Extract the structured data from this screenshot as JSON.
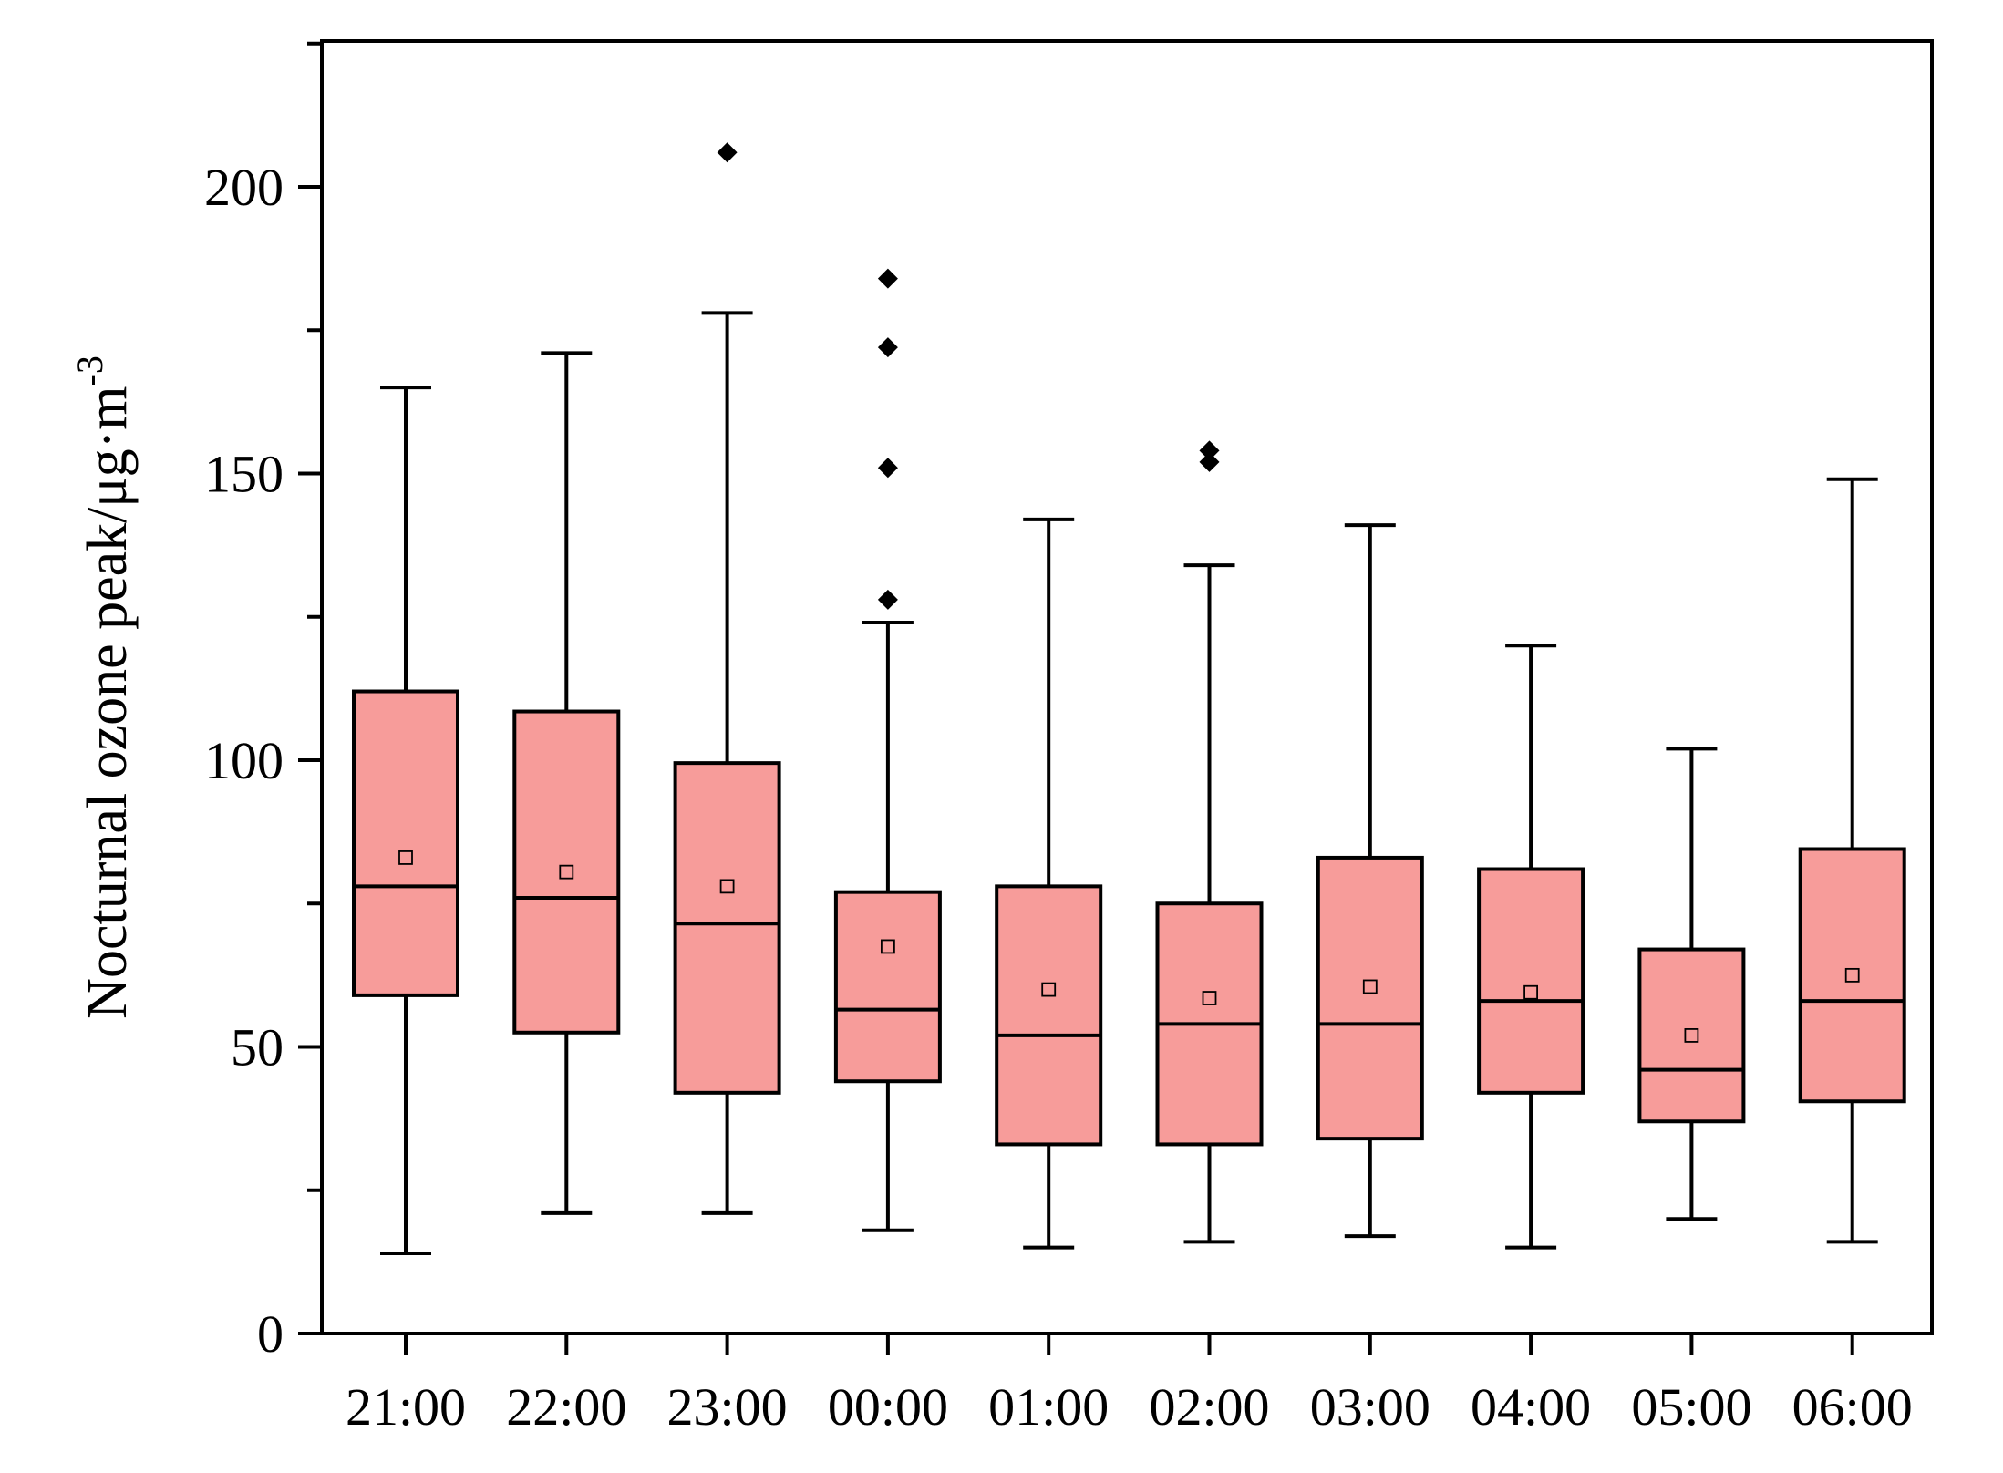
{
  "chart_data": {
    "type": "box",
    "title": "",
    "xlabel": "",
    "ylabel": "Nocturnal ozone peak/μg·m",
    "ylabel_superscript": "-3",
    "ylim": [
      0,
      225
    ],
    "yticks": [
      0,
      50,
      100,
      150,
      200
    ],
    "y_minor_ticks": [
      25,
      75,
      125,
      175,
      225
    ],
    "legend": "none",
    "grid": false,
    "box_fill_color": "#F79C9A",
    "box_edge_color": "#000000",
    "categories": [
      "21:00",
      "22:00",
      "23:00",
      "00:00",
      "01:00",
      "02:00",
      "03:00",
      "04:00",
      "05:00",
      "06:00"
    ],
    "boxes": [
      {
        "label": "21:00",
        "whisker_low": 14,
        "q1": 59,
        "median": 78,
        "q3": 112,
        "whisker_high": 165,
        "mean": 83,
        "outliers": []
      },
      {
        "label": "22:00",
        "whisker_low": 21,
        "q1": 52.5,
        "median": 76,
        "q3": 108.5,
        "whisker_high": 171,
        "mean": 80.5,
        "outliers": []
      },
      {
        "label": "23:00",
        "whisker_low": 21,
        "q1": 42,
        "median": 71.5,
        "q3": 99.5,
        "whisker_high": 178,
        "mean": 78,
        "outliers": [
          206
        ]
      },
      {
        "label": "00:00",
        "whisker_low": 18,
        "q1": 44,
        "median": 56.5,
        "q3": 77,
        "whisker_high": 124,
        "mean": 67.5,
        "outliers": [
          128,
          151,
          172,
          184
        ]
      },
      {
        "label": "01:00",
        "whisker_low": 15,
        "q1": 33,
        "median": 52,
        "q3": 78,
        "whisker_high": 142,
        "mean": 60,
        "outliers": []
      },
      {
        "label": "02:00",
        "whisker_low": 16,
        "q1": 33,
        "median": 54,
        "q3": 75,
        "whisker_high": 134,
        "mean": 58.5,
        "outliers": [
          152,
          154
        ]
      },
      {
        "label": "03:00",
        "whisker_low": 17,
        "q1": 34,
        "median": 54,
        "q3": 83,
        "whisker_high": 141,
        "mean": 60.5,
        "outliers": []
      },
      {
        "label": "04:00",
        "whisker_low": 15,
        "q1": 42,
        "median": 58,
        "q3": 81,
        "whisker_high": 120,
        "mean": 59.5,
        "outliers": []
      },
      {
        "label": "05:00",
        "whisker_low": 20,
        "q1": 37,
        "median": 46,
        "q3": 67,
        "whisker_high": 102,
        "mean": 52,
        "outliers": []
      },
      {
        "label": "06:00",
        "whisker_low": 16,
        "q1": 40.5,
        "median": 58,
        "q3": 84.5,
        "whisker_high": 149,
        "mean": 62.5,
        "outliers": []
      }
    ]
  }
}
